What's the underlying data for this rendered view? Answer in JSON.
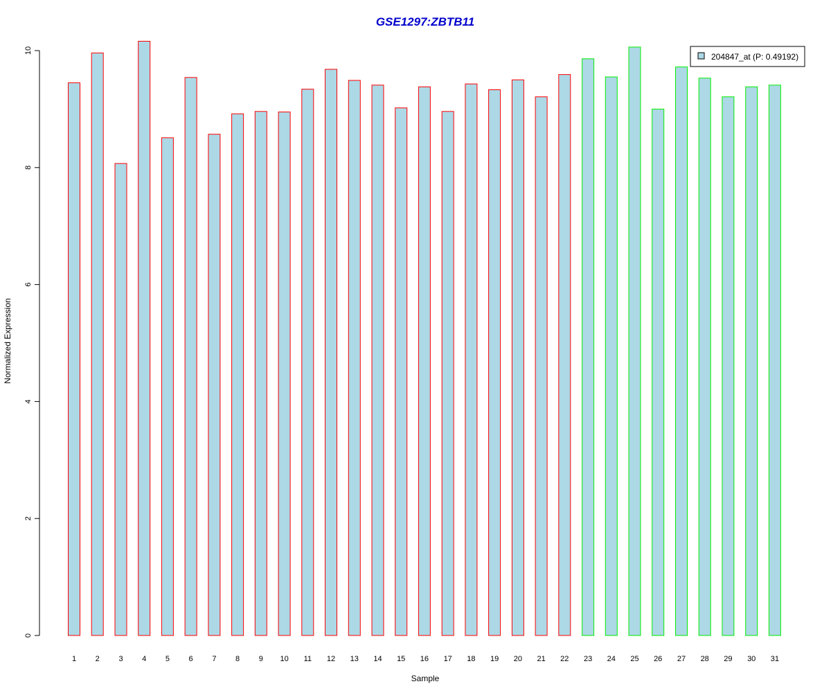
{
  "chart_data": {
    "type": "bar",
    "title": "GSE1297:ZBTB11",
    "xlabel": "Sample",
    "ylabel": "Normalized Expression",
    "ylim": [
      0,
      10.3
    ],
    "yticks": [
      0,
      2,
      4,
      6,
      8,
      10
    ],
    "grid": false,
    "legend": {
      "label": "204847_at (P: 0.49192)",
      "placement": "top-right"
    },
    "categories": [
      "1",
      "2",
      "3",
      "4",
      "5",
      "6",
      "7",
      "8",
      "9",
      "10",
      "11",
      "12",
      "13",
      "14",
      "15",
      "16",
      "17",
      "18",
      "19",
      "20",
      "21",
      "22",
      "23",
      "24",
      "25",
      "26",
      "27",
      "28",
      "29",
      "30",
      "31"
    ],
    "values": [
      9.45,
      9.96,
      8.07,
      10.16,
      8.51,
      9.54,
      8.57,
      8.92,
      8.96,
      8.95,
      9.34,
      9.68,
      9.49,
      9.41,
      9.02,
      9.38,
      8.96,
      9.43,
      9.33,
      9.5,
      9.21,
      9.59,
      9.86,
      9.55,
      10.06,
      9.0,
      9.72,
      9.53,
      9.21,
      9.38,
      9.41
    ],
    "groups": [
      {
        "from": 1,
        "to": 22,
        "border_color": "#ff0000"
      },
      {
        "from": 23,
        "to": 31,
        "border_color": "#00ee00"
      }
    ],
    "colors": {
      "bar_fill": "#add8e6",
      "title": "#0000cd",
      "axis": "#000000"
    }
  }
}
